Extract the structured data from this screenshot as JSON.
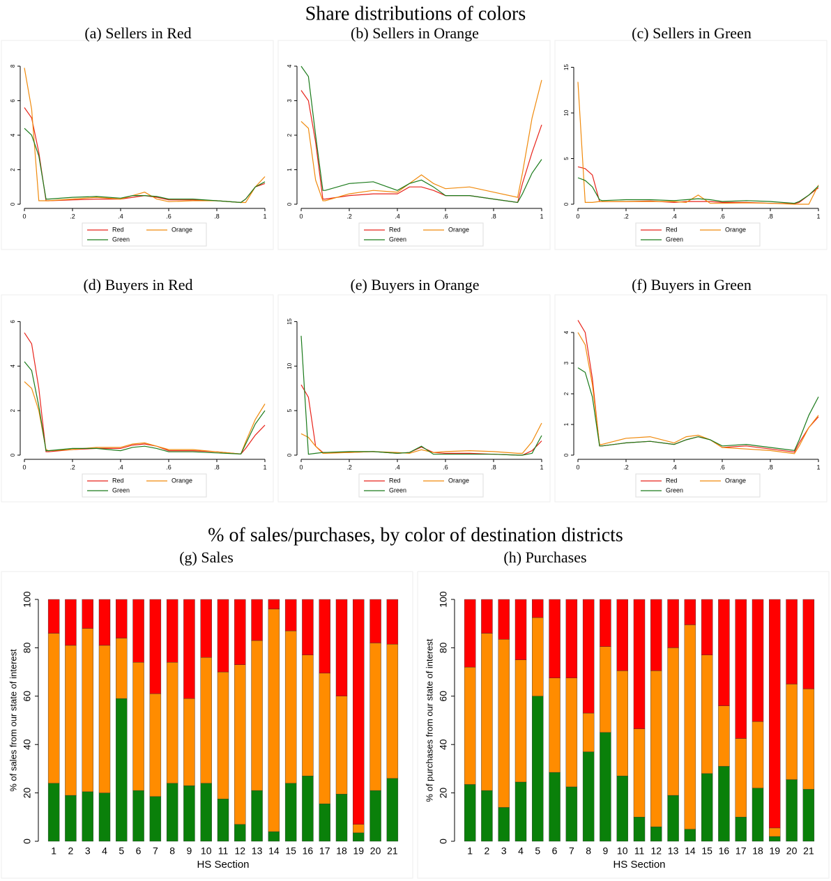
{
  "headings": [
    "Share distributions of colors",
    "% of sales/purchases, by color of destination districts"
  ],
  "chart_data": [
    {
      "type": "line",
      "title": "(a) Sellers in Red",
      "x": [
        0,
        0.03,
        0.06,
        0.09,
        0.1,
        0.2,
        0.3,
        0.4,
        0.45,
        0.5,
        0.55,
        0.6,
        0.7,
        0.8,
        0.9,
        0.92,
        0.96,
        1
      ],
      "series": [
        {
          "name": "Red",
          "color": "#e8231a",
          "values": [
            5.6,
            5.0,
            3.0,
            0.2,
            0.2,
            0.25,
            0.3,
            0.3,
            0.4,
            0.5,
            0.4,
            0.25,
            0.25,
            0.2,
            0.1,
            0.3,
            1.0,
            1.2
          ]
        },
        {
          "name": "Orange",
          "color": "#f08a0c",
          "values": [
            7.9,
            5.5,
            0.2,
            0.2,
            0.2,
            0.3,
            0.4,
            0.3,
            0.5,
            0.7,
            0.3,
            0.15,
            0.2,
            0.2,
            0.1,
            0.1,
            1.0,
            1.6
          ]
        },
        {
          "name": "Green",
          "color": "#1a7a1a",
          "values": [
            4.4,
            4.0,
            2.8,
            0.3,
            0.3,
            0.4,
            0.45,
            0.35,
            0.5,
            0.5,
            0.45,
            0.3,
            0.3,
            0.2,
            0.1,
            0.3,
            1.0,
            1.3
          ]
        }
      ],
      "xlim": [
        0,
        1
      ],
      "xticks": [
        0,
        {
          "value": 0.2,
          "label": ".2"
        },
        {
          "value": 0.4,
          "label": ".4"
        },
        {
          "value": 0.6,
          "label": ".6"
        },
        {
          "value": 0.8,
          "label": ".8"
        },
        1
      ],
      "ylim": [
        0,
        8.2
      ],
      "yticks": [
        0,
        2,
        4,
        6,
        8
      ]
    },
    {
      "type": "line",
      "title": "(b) Sellers in Orange",
      "x": [
        0,
        0.03,
        0.06,
        0.09,
        0.1,
        0.2,
        0.3,
        0.4,
        0.45,
        0.5,
        0.55,
        0.6,
        0.7,
        0.8,
        0.9,
        0.92,
        0.96,
        1
      ],
      "series": [
        {
          "name": "Red",
          "color": "#e8231a",
          "values": [
            3.3,
            3.0,
            1.8,
            0.15,
            0.15,
            0.25,
            0.3,
            0.3,
            0.5,
            0.5,
            0.4,
            0.25,
            0.25,
            0.15,
            0.05,
            0.6,
            1.5,
            2.3
          ]
        },
        {
          "name": "Orange",
          "color": "#f08a0c",
          "values": [
            2.4,
            2.2,
            0.7,
            0.1,
            0.1,
            0.3,
            0.4,
            0.35,
            0.6,
            0.85,
            0.6,
            0.45,
            0.5,
            0.35,
            0.2,
            0.9,
            2.5,
            3.6
          ]
        },
        {
          "name": "Green",
          "color": "#1a7a1a",
          "values": [
            4.0,
            3.7,
            2.0,
            0.4,
            0.4,
            0.6,
            0.65,
            0.4,
            0.6,
            0.7,
            0.5,
            0.25,
            0.25,
            0.15,
            0.05,
            0.3,
            0.9,
            1.3
          ]
        }
      ],
      "xlim": [
        0,
        1
      ],
      "xticks": [
        0,
        {
          "value": 0.2,
          "label": ".2"
        },
        {
          "value": 0.4,
          "label": ".4"
        },
        {
          "value": 0.6,
          "label": ".6"
        },
        {
          "value": 0.8,
          "label": ".8"
        },
        1
      ],
      "ylim": [
        0,
        4.1
      ],
      "yticks": [
        0,
        1,
        2,
        3,
        4
      ]
    },
    {
      "type": "line",
      "title": "(c) Sellers in Green",
      "x": [
        0,
        0.03,
        0.06,
        0.09,
        0.1,
        0.2,
        0.3,
        0.4,
        0.45,
        0.5,
        0.55,
        0.6,
        0.7,
        0.8,
        0.9,
        0.92,
        0.96,
        1
      ],
      "series": [
        {
          "name": "Red",
          "color": "#e8231a",
          "values": [
            4.1,
            3.9,
            3.2,
            0.3,
            0.3,
            0.3,
            0.35,
            0.2,
            0.3,
            0.3,
            0.3,
            0.2,
            0.2,
            0.1,
            0.05,
            0.2,
            1.0,
            1.8
          ]
        },
        {
          "name": "Orange",
          "color": "#f08a0c",
          "values": [
            13.4,
            0.2,
            0.2,
            0.3,
            0.3,
            0.3,
            0.3,
            0.3,
            0.2,
            1.0,
            0.1,
            0.1,
            0.15,
            0.1,
            0.0,
            0.0,
            0.0,
            2.1
          ]
        },
        {
          "name": "Green",
          "color": "#1a7a1a",
          "values": [
            2.9,
            2.6,
            1.9,
            0.5,
            0.4,
            0.5,
            0.5,
            0.4,
            0.5,
            0.6,
            0.5,
            0.3,
            0.4,
            0.3,
            0.1,
            0.3,
            1.0,
            2.0
          ]
        }
      ],
      "xlim": [
        0,
        1
      ],
      "xticks": [
        0,
        {
          "value": 0.2,
          "label": ".2"
        },
        {
          "value": 0.4,
          "label": ".4"
        },
        {
          "value": 0.6,
          "label": ".6"
        },
        {
          "value": 0.8,
          "label": ".8"
        },
        1
      ],
      "ylim": [
        0,
        15.5
      ],
      "yticks": [
        0,
        5,
        10,
        15
      ]
    },
    {
      "type": "line",
      "title": "(d) Buyers in Red",
      "x": [
        0,
        0.03,
        0.06,
        0.09,
        0.1,
        0.2,
        0.3,
        0.4,
        0.45,
        0.5,
        0.55,
        0.6,
        0.7,
        0.8,
        0.9,
        0.92,
        0.96,
        1
      ],
      "series": [
        {
          "name": "Red",
          "color": "#e8231a",
          "values": [
            5.5,
            5.0,
            3.0,
            0.15,
            0.15,
            0.25,
            0.3,
            0.3,
            0.45,
            0.5,
            0.4,
            0.2,
            0.2,
            0.15,
            0.05,
            0.3,
            0.9,
            1.35
          ]
        },
        {
          "name": "Orange",
          "color": "#f08a0c",
          "values": [
            3.3,
            3.0,
            2.0,
            0.25,
            0.2,
            0.25,
            0.35,
            0.35,
            0.5,
            0.55,
            0.4,
            0.25,
            0.25,
            0.15,
            0.05,
            0.6,
            1.6,
            2.3
          ]
        },
        {
          "name": "Green",
          "color": "#1a7a1a",
          "values": [
            4.2,
            3.8,
            2.2,
            0.2,
            0.2,
            0.3,
            0.3,
            0.2,
            0.35,
            0.4,
            0.3,
            0.15,
            0.15,
            0.1,
            0.05,
            0.5,
            1.4,
            2.0
          ]
        }
      ],
      "xlim": [
        0,
        1
      ],
      "xticks": [
        0,
        {
          "value": 0.2,
          "label": ".2"
        },
        {
          "value": 0.4,
          "label": ".4"
        },
        {
          "value": 0.6,
          "label": ".6"
        },
        {
          "value": 0.8,
          "label": ".8"
        },
        1
      ],
      "ylim": [
        0,
        6.2
      ],
      "yticks": [
        0,
        2,
        4,
        6
      ]
    },
    {
      "type": "line",
      "title": "(e) Buyers in Orange",
      "x": [
        0,
        0.03,
        0.06,
        0.09,
        0.1,
        0.2,
        0.3,
        0.4,
        0.45,
        0.5,
        0.55,
        0.6,
        0.7,
        0.8,
        0.9,
        0.92,
        0.96,
        1
      ],
      "series": [
        {
          "name": "Red",
          "color": "#e8231a",
          "values": [
            7.9,
            6.5,
            1.0,
            0.3,
            0.3,
            0.3,
            0.4,
            0.2,
            0.3,
            0.9,
            0.3,
            0.2,
            0.2,
            0.1,
            0.0,
            0.0,
            0.5,
            1.6
          ]
        },
        {
          "name": "Orange",
          "color": "#f08a0c",
          "values": [
            2.4,
            2.0,
            1.0,
            0.2,
            0.2,
            0.3,
            0.4,
            0.3,
            0.2,
            0.6,
            0.3,
            0.4,
            0.5,
            0.4,
            0.2,
            0.2,
            1.5,
            3.6
          ]
        },
        {
          "name": "Green",
          "color": "#1a7a1a",
          "values": [
            13.4,
            0.1,
            0.2,
            0.3,
            0.3,
            0.4,
            0.4,
            0.2,
            0.3,
            1.0,
            0.1,
            0.1,
            0.1,
            0.1,
            0.0,
            0.0,
            0.2,
            2.2
          ]
        }
      ],
      "xlim": [
        0,
        1
      ],
      "xticks": [
        0,
        {
          "value": 0.2,
          "label": ".2"
        },
        {
          "value": 0.4,
          "label": ".4"
        },
        {
          "value": 0.6,
          "label": ".6"
        },
        {
          "value": 0.8,
          "label": ".8"
        },
        1
      ],
      "ylim": [
        0,
        15.5
      ],
      "yticks": [
        0,
        5,
        10,
        15
      ]
    },
    {
      "type": "line",
      "title": "(f) Buyers in Green",
      "x": [
        0,
        0.03,
        0.06,
        0.09,
        0.1,
        0.2,
        0.3,
        0.4,
        0.45,
        0.5,
        0.55,
        0.6,
        0.7,
        0.8,
        0.9,
        0.92,
        0.96,
        1
      ],
      "series": [
        {
          "name": "Red",
          "color": "#e8231a",
          "values": [
            4.4,
            4.0,
            2.5,
            0.3,
            0.3,
            0.4,
            0.45,
            0.35,
            0.5,
            0.6,
            0.5,
            0.25,
            0.3,
            0.2,
            0.1,
            0.4,
            0.9,
            1.25
          ]
        },
        {
          "name": "Orange",
          "color": "#f08a0c",
          "values": [
            4.0,
            3.6,
            2.3,
            0.35,
            0.35,
            0.55,
            0.6,
            0.4,
            0.6,
            0.65,
            0.5,
            0.25,
            0.2,
            0.15,
            0.05,
            0.3,
            0.9,
            1.3
          ]
        },
        {
          "name": "Green",
          "color": "#1a7a1a",
          "values": [
            2.85,
            2.7,
            1.9,
            0.3,
            0.3,
            0.4,
            0.45,
            0.35,
            0.5,
            0.6,
            0.5,
            0.3,
            0.35,
            0.25,
            0.15,
            0.5,
            1.3,
            1.9
          ]
        }
      ],
      "xlim": [
        0,
        1
      ],
      "xticks": [
        0,
        {
          "value": 0.2,
          "label": ".2"
        },
        {
          "value": 0.4,
          "label": ".4"
        },
        {
          "value": 0.6,
          "label": ".6"
        },
        {
          "value": 0.8,
          "label": ".8"
        },
        1
      ],
      "ylim": [
        0,
        4.5
      ],
      "yticks": [
        0,
        1,
        2,
        3,
        4
      ]
    },
    {
      "type": "stacked_bar",
      "title": "(g) Sales",
      "xlabel": "HS Section",
      "ylabel": "% of sales from our state of interest",
      "categories": [
        "1",
        "2",
        "3",
        "4",
        "5",
        "6",
        "7",
        "8",
        "9",
        "10",
        "11",
        "12",
        "13",
        "14",
        "15",
        "16",
        "17",
        "18",
        "19",
        "20",
        "21"
      ],
      "series": [
        {
          "color": "#0a800a",
          "values": [
            24,
            19,
            20.5,
            20,
            59,
            21,
            18.5,
            24,
            23,
            24,
            17.5,
            7,
            21,
            4,
            24,
            27,
            15.5,
            19.5,
            3.5,
            21,
            26
          ]
        },
        {
          "color": "#ff8c00",
          "values": [
            62,
            62,
            67.5,
            61,
            25,
            53,
            42.5,
            50,
            36,
            52,
            52.5,
            66,
            62,
            92,
            63,
            50,
            54,
            40.5,
            3.5,
            61,
            55.5
          ]
        },
        {
          "color": "#ff0000",
          "values": [
            14,
            19,
            12,
            19,
            16,
            26,
            39,
            26,
            41,
            24,
            30,
            27,
            17,
            4,
            13,
            23,
            30.5,
            40,
            93,
            18,
            18.5
          ]
        }
      ],
      "ylim": [
        0,
        100
      ],
      "yticks": [
        0,
        20,
        40,
        60,
        80,
        100
      ]
    },
    {
      "type": "stacked_bar",
      "title": "(h) Purchases",
      "xlabel": "HS Section",
      "ylabel": "% of purchases from our state of interest",
      "categories": [
        "1",
        "2",
        "3",
        "4",
        "5",
        "6",
        "7",
        "8",
        "9",
        "10",
        "11",
        "12",
        "13",
        "14",
        "15",
        "16",
        "17",
        "18",
        "19",
        "20",
        "21"
      ],
      "series": [
        {
          "color": "#0a800a",
          "values": [
            23.5,
            21,
            14,
            24.5,
            60,
            28.5,
            22.5,
            37,
            45,
            27,
            10,
            6,
            19,
            5,
            28,
            31,
            10,
            22,
            2,
            25.5,
            21.5
          ]
        },
        {
          "color": "#ff8c00",
          "values": [
            48.5,
            65,
            69.5,
            50.5,
            32.5,
            39,
            45,
            16,
            35.5,
            43.5,
            36.5,
            64.5,
            61,
            84.5,
            49,
            25,
            32.5,
            27.5,
            3.5,
            39.5,
            41.5
          ]
        },
        {
          "color": "#ff0000",
          "values": [
            28,
            14,
            16.5,
            25,
            7.5,
            32.5,
            32.5,
            47,
            19.5,
            29.5,
            53.5,
            29.5,
            20,
            10.5,
            23,
            44,
            57.5,
            50.5,
            94.5,
            35,
            37
          ]
        }
      ],
      "ylim": [
        0,
        100
      ],
      "yticks": [
        0,
        20,
        40,
        60,
        80,
        100
      ]
    }
  ]
}
